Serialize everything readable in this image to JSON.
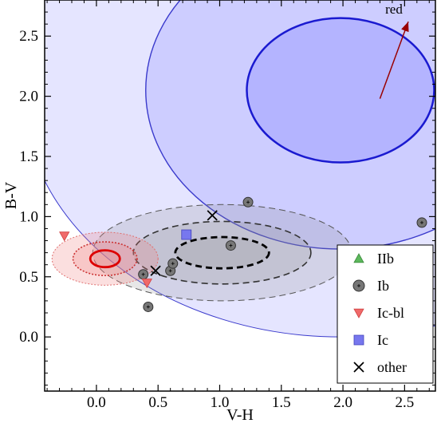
{
  "chart_data": {
    "type": "scatter",
    "xlabel": "V-H",
    "ylabel": "B-V",
    "xlim": [
      -0.42,
      2.75
    ],
    "ylim": [
      -0.45,
      2.8
    ],
    "x_ticks": [
      0.0,
      0.5,
      1.0,
      1.5,
      2.0,
      2.5
    ],
    "x_tick_labels": [
      "0.0",
      "0.5",
      "1.0",
      "1.5",
      "2.0",
      "2.5"
    ],
    "y_ticks": [
      0.0,
      0.5,
      1.0,
      1.5,
      2.0,
      2.5
    ],
    "y_tick_labels": [
      "0.0",
      "0.5",
      "1.0",
      "1.5",
      "2.0",
      "2.5"
    ],
    "grid": false,
    "legend_position": "lower-right",
    "legend": [
      {
        "label": "IIb",
        "marker": "triangle-up",
        "color": "#5cb85c"
      },
      {
        "label": "Ib",
        "marker": "circle",
        "color": "#777777"
      },
      {
        "label": "Ic-bl",
        "marker": "triangle-down",
        "color": "#f06a6a"
      },
      {
        "label": "Ic",
        "marker": "square",
        "color": "#7777ee"
      },
      {
        "label": "other",
        "marker": "x",
        "color": "#000000"
      }
    ],
    "series": [
      {
        "name": "Ib",
        "marker": "circle",
        "color": "#777777",
        "points": [
          [
            0.38,
            0.52
          ],
          [
            0.42,
            0.25
          ],
          [
            0.6,
            0.55
          ],
          [
            0.62,
            0.61
          ],
          [
            1.09,
            0.76
          ],
          [
            1.23,
            1.12
          ],
          [
            2.64,
            0.95
          ]
        ]
      },
      {
        "name": "Ic-bl",
        "marker": "triangle-down",
        "color": "#f06a6a",
        "points": [
          [
            -0.26,
            0.84
          ],
          [
            0.41,
            0.45
          ]
        ]
      },
      {
        "name": "Ic",
        "marker": "square",
        "color": "#7777ee",
        "points": [
          [
            0.73,
            0.85
          ]
        ]
      },
      {
        "name": "other",
        "marker": "x",
        "color": "#000000",
        "points": [
          [
            0.48,
            0.55
          ],
          [
            0.94,
            1.01
          ]
        ]
      }
    ],
    "ellipses": [
      {
        "group": "blue",
        "cx": 1.98,
        "cy": 2.05,
        "rx": 2.58,
        "ry": 2.05,
        "fill": "#7b7bff",
        "fill_opacity": 0.2,
        "stroke": "#3a3acc",
        "stroke_width": 1,
        "dash": "solid"
      },
      {
        "group": "blue",
        "cx": 1.98,
        "cy": 2.05,
        "rx": 1.58,
        "ry": 1.32,
        "fill": "#7b7bff",
        "fill_opacity": 0.22,
        "stroke": "#3a3acc",
        "stroke_width": 1.4,
        "dash": "solid"
      },
      {
        "group": "blue",
        "cx": 1.98,
        "cy": 2.05,
        "rx": 0.76,
        "ry": 0.6,
        "fill": "#7b7bff",
        "fill_opacity": 0.3,
        "stroke": "#1a1ad0",
        "stroke_width": 2.5,
        "dash": "solid"
      },
      {
        "group": "black",
        "cx": 1.02,
        "cy": 0.7,
        "rx": 1.05,
        "ry": 0.4,
        "fill": "#888888",
        "fill_opacity": 0.2,
        "stroke": "#555555",
        "stroke_width": 1,
        "dash": "dashed"
      },
      {
        "group": "black",
        "cx": 1.02,
        "cy": 0.7,
        "rx": 0.72,
        "ry": 0.26,
        "fill": "#888888",
        "fill_opacity": 0.2,
        "stroke": "#333333",
        "stroke_width": 1.6,
        "dash": "dashed"
      },
      {
        "group": "black",
        "cx": 1.02,
        "cy": 0.7,
        "rx": 0.38,
        "ry": 0.13,
        "fill": "#888888",
        "fill_opacity": 0.2,
        "stroke": "#000000",
        "stroke_width": 2.8,
        "dash": "dashed"
      },
      {
        "group": "red",
        "cx": 0.07,
        "cy": 0.65,
        "rx": 0.43,
        "ry": 0.22,
        "fill": "#f08080",
        "fill_opacity": 0.25,
        "stroke": "#e07070",
        "stroke_width": 1,
        "dash": "dotted"
      },
      {
        "group": "red",
        "cx": 0.07,
        "cy": 0.65,
        "rx": 0.26,
        "ry": 0.14,
        "fill": "#f08080",
        "fill_opacity": 0.25,
        "stroke": "#cc3333",
        "stroke_width": 1.6,
        "dash": "dotted"
      },
      {
        "group": "red",
        "cx": 0.07,
        "cy": 0.65,
        "rx": 0.12,
        "ry": 0.07,
        "fill": "#f08080",
        "fill_opacity": 0.25,
        "stroke": "#dd0000",
        "stroke_width": 2.8,
        "dash": "solid"
      }
    ],
    "annotations": [
      {
        "text": "red",
        "arrow_from": [
          2.3,
          1.98
        ],
        "arrow_to": [
          2.53,
          2.62
        ],
        "color": "#990000"
      }
    ]
  }
}
